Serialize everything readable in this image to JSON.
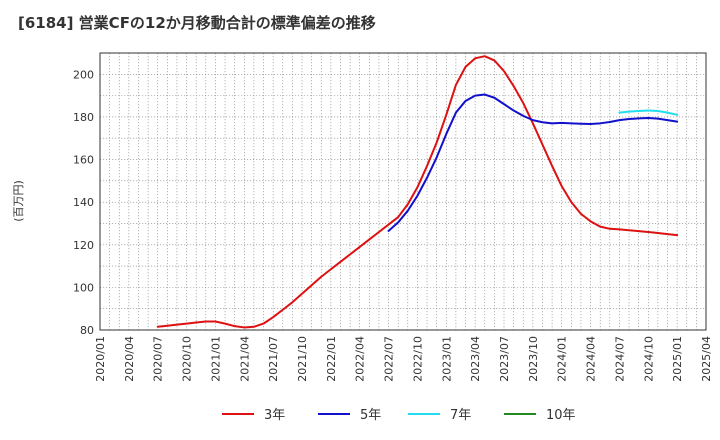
{
  "title": "[6184]  営業CFの12か月移動合計の標準偏差の推移",
  "chart_data": {
    "type": "line",
    "title": "[6184]  営業CFの12か月移動合計の標準偏差の推移",
    "xlabel": "",
    "ylabel": "(百万円)",
    "xlim": [
      "2020/01",
      "2025/04"
    ],
    "ylim": [
      80,
      210
    ],
    "y_ticks": [
      80,
      100,
      120,
      140,
      160,
      180,
      200
    ],
    "x_ticks": [
      "2020/01",
      "2020/04",
      "2020/07",
      "2020/10",
      "2021/01",
      "2021/04",
      "2021/07",
      "2021/10",
      "2022/01",
      "2022/04",
      "2022/07",
      "2022/10",
      "2023/01",
      "2023/04",
      "2023/07",
      "2023/10",
      "2024/01",
      "2024/04",
      "2024/07",
      "2024/10",
      "2025/01",
      "2025/04"
    ],
    "grid": true,
    "legend_position": "bottom",
    "series": [
      {
        "name": "3年",
        "color": "#dd1111",
        "points": [
          [
            "2020/07",
            81.5
          ],
          [
            "2020/08",
            82
          ],
          [
            "2020/09",
            82.5
          ],
          [
            "2020/10",
            83
          ],
          [
            "2020/11",
            83.5
          ],
          [
            "2020/12",
            84
          ],
          [
            "2021/01",
            84
          ],
          [
            "2021/02",
            83
          ],
          [
            "2021/03",
            81.8
          ],
          [
            "2021/04",
            81.2
          ],
          [
            "2021/05",
            81.5
          ],
          [
            "2021/06",
            83
          ],
          [
            "2021/07",
            86
          ],
          [
            "2021/08",
            89.5
          ],
          [
            "2021/09",
            93
          ],
          [
            "2021/10",
            97
          ],
          [
            "2021/11",
            101
          ],
          [
            "2021/12",
            105
          ],
          [
            "2022/01",
            108.5
          ],
          [
            "2022/02",
            112
          ],
          [
            "2022/03",
            115.5
          ],
          [
            "2022/04",
            119
          ],
          [
            "2022/05",
            122.5
          ],
          [
            "2022/06",
            126
          ],
          [
            "2022/07",
            129.5
          ],
          [
            "2022/08",
            133
          ],
          [
            "2022/09",
            139
          ],
          [
            "2022/10",
            147
          ],
          [
            "2022/11",
            157
          ],
          [
            "2022/12",
            168
          ],
          [
            "2023/01",
            181
          ],
          [
            "2023/02",
            195
          ],
          [
            "2023/03",
            203.5
          ],
          [
            "2023/04",
            207.5
          ],
          [
            "2023/05",
            208.5
          ],
          [
            "2023/06",
            206.5
          ],
          [
            "2023/07",
            201.5
          ],
          [
            "2023/08",
            194.5
          ],
          [
            "2023/09",
            186.5
          ],
          [
            "2023/10",
            177
          ],
          [
            "2023/11",
            167
          ],
          [
            "2023/12",
            157
          ],
          [
            "2024/01",
            147.5
          ],
          [
            "2024/02",
            140
          ],
          [
            "2024/03",
            134.5
          ],
          [
            "2024/04",
            131
          ],
          [
            "2024/05",
            128.5
          ],
          [
            "2024/06",
            127.5
          ],
          [
            "2024/07",
            127.2
          ],
          [
            "2024/08",
            126.8
          ],
          [
            "2024/09",
            126.4
          ],
          [
            "2024/10",
            126
          ],
          [
            "2024/11",
            125.5
          ],
          [
            "2024/12",
            125
          ],
          [
            "2025/01",
            124.5
          ]
        ]
      },
      {
        "name": "5年",
        "color": "#1111cc",
        "points": [
          [
            "2022/07",
            126.5
          ],
          [
            "2022/08",
            130.5
          ],
          [
            "2022/09",
            136
          ],
          [
            "2022/10",
            143
          ],
          [
            "2022/11",
            151.5
          ],
          [
            "2022/12",
            161
          ],
          [
            "2023/01",
            172
          ],
          [
            "2023/02",
            182
          ],
          [
            "2023/03",
            187.5
          ],
          [
            "2023/04",
            190
          ],
          [
            "2023/05",
            190.5
          ],
          [
            "2023/06",
            189
          ],
          [
            "2023/07",
            186
          ],
          [
            "2023/08",
            183
          ],
          [
            "2023/09",
            180.5
          ],
          [
            "2023/10",
            178.5
          ],
          [
            "2023/11",
            177.5
          ],
          [
            "2023/12",
            177
          ],
          [
            "2024/01",
            177.2
          ],
          [
            "2024/02",
            177
          ],
          [
            "2024/03",
            176.8
          ],
          [
            "2024/04",
            176.7
          ],
          [
            "2024/05",
            177
          ],
          [
            "2024/06",
            177.6
          ],
          [
            "2024/07",
            178.5
          ],
          [
            "2024/08",
            179
          ],
          [
            "2024/09",
            179.3
          ],
          [
            "2024/10",
            179.5
          ],
          [
            "2024/11",
            179.2
          ],
          [
            "2024/12",
            178.5
          ],
          [
            "2025/01",
            177.8
          ]
        ]
      },
      {
        "name": "7年",
        "color": "#22ddee",
        "points": [
          [
            "2024/07",
            182
          ],
          [
            "2024/08",
            182.5
          ],
          [
            "2024/09",
            182.8
          ],
          [
            "2024/10",
            183
          ],
          [
            "2024/11",
            182.8
          ],
          [
            "2024/12",
            182
          ],
          [
            "2025/01",
            181
          ]
        ]
      },
      {
        "name": "10年",
        "color": "#228822",
        "points": []
      }
    ]
  }
}
